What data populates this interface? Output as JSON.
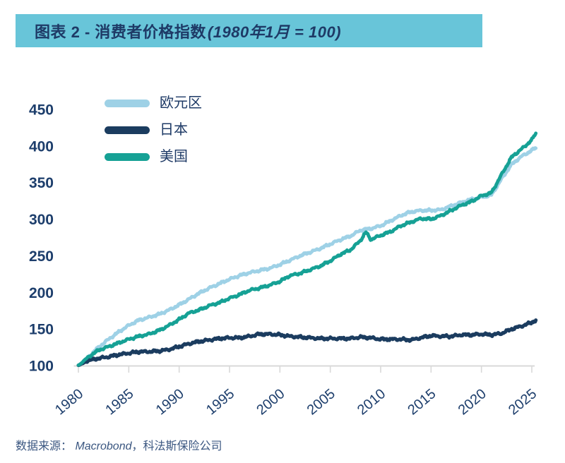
{
  "header": {
    "title_main": "图表 2 - 消费者价格指数",
    "title_paren": "(1980年1月 = 100)"
  },
  "source": {
    "prefix": "数据来源： ",
    "name": "Macrobond",
    "suffix": "，科法斯保险公司"
  },
  "colors": {
    "title_bar_bg": "#68C5D9",
    "navy_text": "#1E3A66",
    "axis_gray": "#D9D9D9",
    "tick_label": "#1D3E6C",
    "source_text": "#3A5680",
    "eurozone_line": "#9ED1E6",
    "japan_line": "#1B3C5F",
    "us_line": "#16A195"
  },
  "chart_data": {
    "type": "line",
    "title": "图表 2 - 消费者价格指数(1980年1月 = 100)",
    "index_base": "1980年1月 = 100",
    "xlim": [
      1980,
      2025.4
    ],
    "ylim": [
      100,
      460
    ],
    "x_ticks": [
      1980,
      1985,
      1990,
      1995,
      2000,
      2005,
      2010,
      2015,
      2020,
      2025
    ],
    "y_ticks": [
      100,
      150,
      200,
      250,
      300,
      350,
      400,
      450
    ],
    "grid": false,
    "legend_position": "top-left",
    "series": [
      {
        "key": "eurozone",
        "name": "欧元区",
        "color": "#9ED1E6",
        "x": [
          1980,
          1981,
          1982,
          1983,
          1984,
          1985,
          1986,
          1987,
          1988,
          1989,
          1990,
          1991,
          1992,
          1993,
          1994,
          1995,
          1996,
          1997,
          1998,
          1999,
          2000,
          2001,
          2002,
          2003,
          2004,
          2005,
          2006,
          2007,
          2008,
          2009,
          2010,
          2011,
          2012,
          2013,
          2014,
          2015,
          2016,
          2017,
          2018,
          2019,
          2020,
          2021,
          2022,
          2023,
          2024,
          2025,
          2025.4
        ],
        "values": [
          100,
          112,
          125,
          136,
          146,
          155,
          162,
          166,
          170,
          176,
          183,
          191,
          199,
          206,
          212,
          218,
          223,
          227,
          230,
          233,
          238,
          244,
          250,
          255,
          260,
          266,
          272,
          277,
          285,
          287,
          291,
          298,
          305,
          310,
          312,
          312,
          313,
          318,
          323,
          327,
          330,
          333,
          355,
          375,
          386,
          394,
          398
        ]
      },
      {
        "key": "japan",
        "name": "日本",
        "color": "#1B3C5F",
        "x": [
          1980,
          1981,
          1982,
          1983,
          1984,
          1985,
          1986,
          1987,
          1988,
          1989,
          1990,
          1991,
          1992,
          1993,
          1994,
          1995,
          1996,
          1997,
          1998,
          1999,
          2000,
          2001,
          2002,
          2003,
          2004,
          2005,
          2006,
          2007,
          2008,
          2009,
          2010,
          2011,
          2012,
          2013,
          2014,
          2015,
          2016,
          2017,
          2018,
          2019,
          2020,
          2021,
          2022,
          2023,
          2024,
          2025,
          2025.4
        ],
        "values": [
          100,
          107,
          110,
          112,
          115,
          117,
          119,
          119,
          120,
          122,
          126,
          130,
          133,
          135,
          137,
          138,
          138,
          140,
          143,
          143,
          142,
          140,
          139,
          138,
          137,
          137,
          137,
          137,
          139,
          138,
          136,
          136,
          136,
          135,
          138,
          141,
          140,
          140,
          142,
          142,
          143,
          142,
          144,
          150,
          154,
          159,
          162
        ]
      },
      {
        "key": "us",
        "name": "美国",
        "color": "#16A195",
        "x": [
          1980,
          1981,
          1982,
          1983,
          1984,
          1985,
          1986,
          1987,
          1988,
          1989,
          1990,
          1991,
          1992,
          1993,
          1994,
          1995,
          1996,
          1997,
          1998,
          1999,
          2000,
          2001,
          2002,
          2003,
          2004,
          2005,
          2006,
          2007,
          2008,
          2008.55,
          2009,
          2010,
          2011,
          2012,
          2013,
          2014,
          2015,
          2016,
          2017,
          2018,
          2019,
          2020,
          2021,
          2022,
          2023,
          2024,
          2025,
          2025.4
        ],
        "values": [
          100,
          112,
          121,
          126,
          131,
          136,
          140,
          143,
          148,
          155,
          163,
          172,
          176,
          182,
          186,
          192,
          197,
          203,
          206,
          210,
          215,
          223,
          226,
          231,
          236,
          243,
          252,
          258,
          271,
          283,
          272,
          278,
          283,
          291,
          296,
          301,
          300,
          305,
          312,
          319,
          324,
          332,
          336,
          361,
          385,
          396,
          408,
          418
        ]
      }
    ]
  }
}
